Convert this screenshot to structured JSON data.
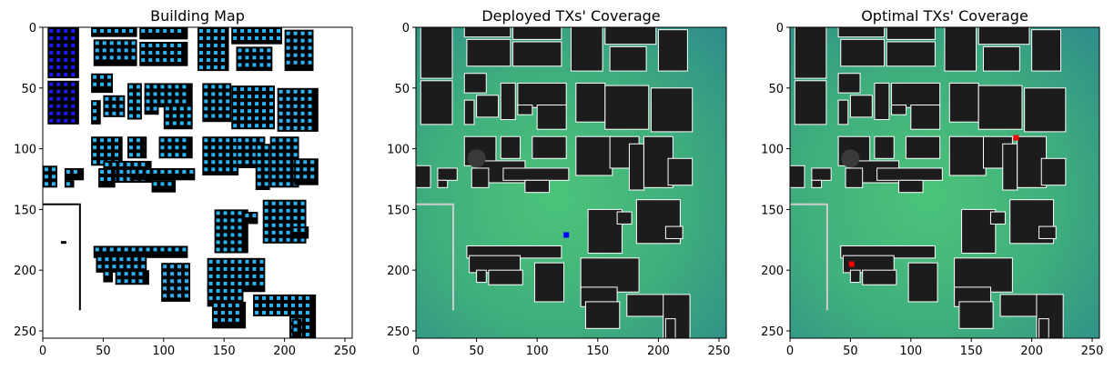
{
  "chart_data": [
    {
      "type": "heatmap",
      "title": "Building Map",
      "xlim": [
        0,
        256
      ],
      "ylim": [
        256,
        0
      ],
      "x_ticks": [
        0,
        50,
        100,
        150,
        200,
        250
      ],
      "y_ticks": [
        0,
        50,
        100,
        150,
        200,
        250
      ],
      "tx_markers": []
    },
    {
      "type": "heatmap",
      "title": "Deployed TXs' Coverage",
      "xlim": [
        0,
        256
      ],
      "ylim": [
        256,
        0
      ],
      "x_ticks": [
        0,
        50,
        100,
        150,
        200,
        250
      ],
      "y_ticks": [
        0,
        50,
        100,
        150,
        200,
        250
      ],
      "tx_markers": [
        {
          "x": 124,
          "y": 171,
          "color": "#0000ff"
        }
      ]
    },
    {
      "type": "heatmap",
      "title": "Optimal TXs' Coverage",
      "xlim": [
        0,
        256
      ],
      "ylim": [
        256,
        0
      ],
      "x_ticks": [
        0,
        50,
        100,
        150,
        200,
        250
      ],
      "y_ticks": [
        0,
        50,
        100,
        150,
        200,
        250
      ],
      "tx_markers": [
        {
          "x": 187,
          "y": 91,
          "color": "#ff0000"
        },
        {
          "x": 51,
          "y": 195,
          "color": "#ff0000"
        }
      ]
    }
  ],
  "colors": {
    "building_map_bg": "#ffffff",
    "building": "#000000",
    "window_light": "#29b6f6",
    "window_dark": "#1a1aff",
    "coverage_high": "#4cc47a",
    "coverage_mid": "#3fae7c",
    "coverage_low": "#2f8f8a",
    "building_dark": "#1c1c1c",
    "building_outline": "#ffffff"
  }
}
